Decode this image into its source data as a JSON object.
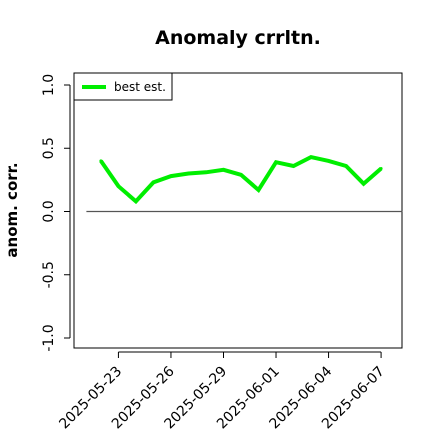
{
  "chart_data": {
    "type": "line",
    "title": "Anomaly crrltn.",
    "xlabel": "",
    "ylabel": "anom. corr.",
    "ylim": [
      -1.0,
      1.0
    ],
    "yticks": [
      -1.0,
      -0.5,
      0.0,
      0.5,
      1.0
    ],
    "ytick_labels": [
      "-1.0",
      "-0.5",
      "0.0",
      "0.5",
      "1.0"
    ],
    "xticks": [
      "2025-05-23",
      "2025-05-26",
      "2025-05-29",
      "2025-06-01",
      "2025-06-04",
      "2025-06-07"
    ],
    "x_range": [
      "2025-05-21",
      "2025-06-08"
    ],
    "reference_line": {
      "y": 0.0,
      "x_range": [
        "2025-05-21",
        "2025-06-08"
      ],
      "color": "#555555"
    },
    "legend": {
      "position": "top-left"
    },
    "grid": false,
    "series": [
      {
        "name": "best est.",
        "color": "#00ee00",
        "x": [
          "2025-05-22",
          "2025-05-23",
          "2025-05-24",
          "2025-05-25",
          "2025-05-26",
          "2025-05-27",
          "2025-05-28",
          "2025-05-29",
          "2025-05-30",
          "2025-05-31",
          "2025-06-01",
          "2025-06-02",
          "2025-06-03",
          "2025-06-04",
          "2025-06-05",
          "2025-06-06",
          "2025-06-07"
        ],
        "y": [
          0.4,
          0.2,
          0.08,
          0.23,
          0.28,
          0.3,
          0.31,
          0.33,
          0.29,
          0.17,
          0.39,
          0.36,
          0.43,
          0.4,
          0.36,
          0.22,
          0.34
        ]
      }
    ]
  }
}
